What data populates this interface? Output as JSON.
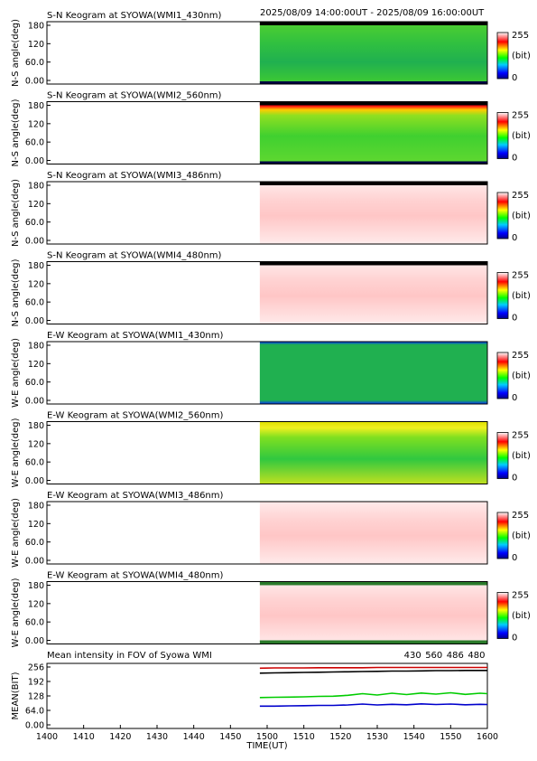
{
  "header": {
    "time_range": "2025/08/09 14:00:00UT - 2025/08/09 16:00:00UT"
  },
  "colorbar": {
    "max_label": "255",
    "unit_label": "(bit)",
    "min_label": "0"
  },
  "chart_data": [
    {
      "type": "heatmap",
      "title": "S-N Keogram at SYOWA(WMI1_430nm)",
      "ylabel": "N-S angle(deg)",
      "yticks": [
        "180",
        "120",
        "60.0",
        "0.00"
      ],
      "ylim": [
        0,
        180
      ],
      "data_start_ut": "14:58",
      "palette": "green"
    },
    {
      "type": "heatmap",
      "title": "S-N Keogram at SYOWA(WMI2_560nm)",
      "ylabel": "N-S angle(deg)",
      "yticks": [
        "180",
        "120",
        "60.0",
        "0.00"
      ],
      "ylim": [
        0,
        180
      ],
      "data_start_ut": "14:58",
      "palette": "green-red"
    },
    {
      "type": "heatmap",
      "title": "S-N Keogram at SYOWA(WMI3_486nm)",
      "ylabel": "N-S angle(deg)",
      "yticks": [
        "180",
        "120",
        "60.0",
        "0.00"
      ],
      "ylim": [
        0,
        180
      ],
      "data_start_ut": "14:58",
      "palette": "pink"
    },
    {
      "type": "heatmap",
      "title": "S-N Keogram at SYOWA(WMI4_480nm)",
      "ylabel": "N-S angle(deg)",
      "yticks": [
        "180",
        "120",
        "60.0",
        "0.00"
      ],
      "ylim": [
        0,
        180
      ],
      "data_start_ut": "14:58",
      "palette": "pink"
    },
    {
      "type": "heatmap",
      "title": "E-W Keogram at SYOWA(WMI1_430nm)",
      "ylabel": "W-E angle(deg)",
      "yticks": [
        "180",
        "120",
        "60.0",
        "0.00"
      ],
      "ylim": [
        0,
        180
      ],
      "data_start_ut": "14:58",
      "palette": "green-blue"
    },
    {
      "type": "heatmap",
      "title": "E-W Keogram at SYOWA(WMI2_560nm)",
      "ylabel": "W-E angle(deg)",
      "yticks": [
        "180",
        "120",
        "60.0",
        "0.00"
      ],
      "ylim": [
        0,
        180
      ],
      "data_start_ut": "14:58",
      "palette": "green-yellow"
    },
    {
      "type": "heatmap",
      "title": "E-W Keogram at SYOWA(WMI3_486nm)",
      "ylabel": "W-E angle(deg)",
      "yticks": [
        "180",
        "120",
        "60.0",
        "0.00"
      ],
      "ylim": [
        0,
        180
      ],
      "data_start_ut": "14:58",
      "palette": "pink"
    },
    {
      "type": "heatmap",
      "title": "E-W Keogram at SYOWA(WMI4_480nm)",
      "ylabel": "W-E angle(deg)",
      "yticks": [
        "180",
        "120",
        "60.0",
        "0.00"
      ],
      "ylim": [
        0,
        180
      ],
      "data_start_ut": "14:58",
      "palette": "pink"
    },
    {
      "type": "line",
      "title": "Mean intensity in FOV of Syowa WMI",
      "xlabel": "TIME(UT)",
      "ylabel": "MEAN(BIT)",
      "xticks": [
        "1400",
        "1410",
        "1420",
        "1430",
        "1440",
        "1450",
        "1500",
        "1510",
        "1520",
        "1530",
        "1540",
        "1550",
        "1600"
      ],
      "yticks": [
        "256",
        "192",
        "128",
        "64.0",
        "0.00"
      ],
      "xlim": [
        0,
        120
      ],
      "ylim": [
        0,
        256
      ],
      "series": [
        {
          "name": "430",
          "color": "#0000cc",
          "x": [
            58,
            62,
            66,
            70,
            74,
            78,
            82,
            86,
            90,
            94,
            98,
            102,
            106,
            110,
            114,
            118,
            120
          ],
          "values": [
            83,
            83,
            84,
            85,
            86,
            86,
            88,
            92,
            88,
            91,
            89,
            93,
            90,
            92,
            89,
            91,
            90
          ]
        },
        {
          "name": "560",
          "color": "#00cc00",
          "x": [
            58,
            62,
            66,
            70,
            74,
            78,
            82,
            86,
            90,
            94,
            98,
            102,
            106,
            110,
            114,
            118,
            120
          ],
          "values": [
            121,
            122,
            123,
            124,
            126,
            127,
            131,
            138,
            132,
            140,
            134,
            141,
            136,
            142,
            135,
            140,
            138
          ]
        },
        {
          "name": "486",
          "color": "#cc0000",
          "x": [
            58,
            62,
            66,
            70,
            74,
            78,
            82,
            86,
            90,
            94,
            98,
            102,
            106,
            110,
            114,
            118,
            120
          ],
          "values": [
            251,
            252,
            252,
            252,
            253,
            253,
            253,
            253,
            254,
            254,
            254,
            254,
            254,
            254,
            254,
            254,
            254
          ]
        },
        {
          "name": "480",
          "color": "#000000",
          "x": [
            58,
            62,
            66,
            70,
            74,
            78,
            82,
            86,
            90,
            94,
            98,
            102,
            106,
            110,
            114,
            118,
            120
          ],
          "values": [
            229,
            230,
            231,
            232,
            233,
            234,
            235,
            236,
            237,
            238,
            238,
            239,
            240,
            240,
            241,
            241,
            241
          ]
        }
      ]
    }
  ]
}
